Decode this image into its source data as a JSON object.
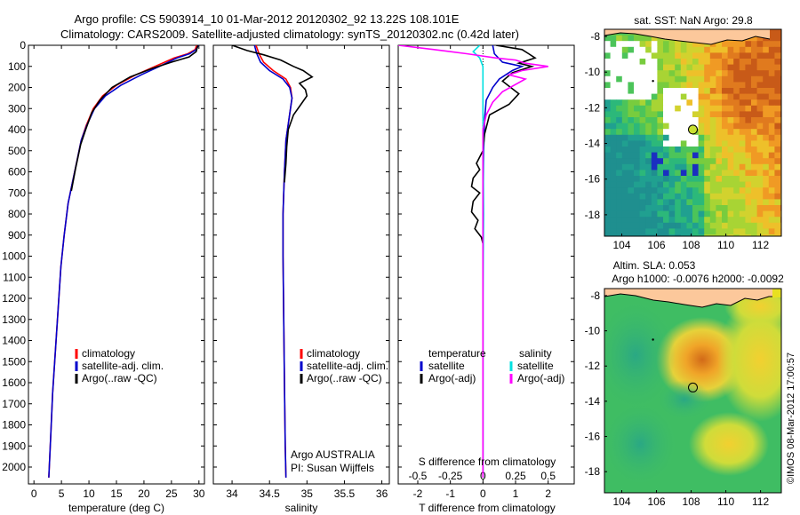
{
  "title": {
    "line1": "Argo profile: CS 5903914_10 01-Mar-2012 20120302_92 13.22S 108.101E",
    "line2": "Climatology: CARS2009. Satellite-adjusted climatology: synTS_20120302.nc (0.42d later)"
  },
  "map1_title": "sat. SST: NaN Argo: 29.8",
  "map2_title_line1": "Altim. SLA: 0.053",
  "map2_title_line2": "Argo h1000: -0.0076 h2000: -0.0092",
  "watermark": "©IMOS 08-Mar-2012 17:00:57",
  "colors": {
    "climatology": "#ff0000",
    "satellite": "#0000cc",
    "argo": "#000000",
    "sal_satellite": "#00e0e0",
    "sal_argo": "#ff00ff"
  },
  "chart_data": [
    {
      "type": "line",
      "name": "temperature-profile",
      "xlabel": "temperature (deg C)",
      "ylabel": "",
      "xlim": [
        -1,
        31
      ],
      "ylim": [
        2080,
        0
      ],
      "xticks": [
        "0",
        "5",
        "10",
        "15",
        "20",
        "25",
        "30"
      ],
      "yticks": [
        "0",
        "100",
        "200",
        "300",
        "400",
        "500",
        "600",
        "700",
        "800",
        "900",
        "1000",
        "1100",
        "1200",
        "1300",
        "1400",
        "1500",
        "1600",
        "1700",
        "1800",
        "1900",
        "2000"
      ],
      "legend": [
        "climatology",
        "satellite-adj. clim.",
        "Argo(..raw -QC)"
      ],
      "series": [
        {
          "name": "climatology",
          "color": "#ff0000",
          "points": [
            [
              29.6,
              0
            ],
            [
              29.3,
              20
            ],
            [
              28,
              40
            ],
            [
              25.5,
              60
            ],
            [
              22,
              100
            ],
            [
              18.5,
              140
            ],
            [
              15,
              190
            ],
            [
              12.5,
              240
            ],
            [
              10.8,
              300
            ],
            [
              9.5,
              380
            ],
            [
              8.6,
              450
            ],
            [
              7.8,
              550
            ],
            [
              7,
              650
            ],
            [
              6.2,
              750
            ],
            [
              5.5,
              900
            ],
            [
              4.9,
              1050
            ],
            [
              4.4,
              1250
            ],
            [
              3.9,
              1450
            ],
            [
              3.4,
              1650
            ],
            [
              3.05,
              1850
            ],
            [
              2.7,
              2050
            ]
          ]
        },
        {
          "name": "satellite-adj. clim.",
          "color": "#0000cc",
          "points": [
            [
              29.9,
              0
            ],
            [
              29.5,
              20
            ],
            [
              28.3,
              40
            ],
            [
              26,
              60
            ],
            [
              22.8,
              100
            ],
            [
              19.5,
              140
            ],
            [
              15.8,
              190
            ],
            [
              13,
              240
            ],
            [
              11,
              300
            ],
            [
              9.6,
              380
            ],
            [
              8.6,
              450
            ],
            [
              7.8,
              550
            ],
            [
              7,
              650
            ],
            [
              6.2,
              750
            ],
            [
              5.5,
              900
            ],
            [
              4.9,
              1050
            ],
            [
              4.4,
              1250
            ],
            [
              3.9,
              1450
            ],
            [
              3.4,
              1650
            ],
            [
              3.05,
              1850
            ],
            [
              2.7,
              2050
            ]
          ]
        },
        {
          "name": "Argo(..raw -QC)",
          "color": "#000000",
          "points": [
            [
              29.8,
              0
            ],
            [
              29.5,
              30
            ],
            [
              28.2,
              55
            ],
            [
              25,
              80
            ],
            [
              21.5,
              110
            ],
            [
              17.5,
              150
            ],
            [
              14.2,
              200
            ],
            [
              12,
              260
            ],
            [
              10.5,
              320
            ],
            [
              9.4,
              400
            ],
            [
              8.5,
              470
            ],
            [
              7.6,
              580
            ],
            [
              6.8,
              690
            ]
          ]
        }
      ]
    },
    {
      "type": "line",
      "name": "salinity-profile",
      "xlabel": "salinity",
      "xlim": [
        33.75,
        36.1
      ],
      "ylim": [
        2080,
        0
      ],
      "xticks": [
        "34",
        "34.5",
        "35",
        "35.5",
        "36"
      ],
      "legend": [
        "climatology",
        "satellite-adj. clim.",
        "Argo(..raw -QC)"
      ],
      "annotation_line1": "Argo AUSTRALIA",
      "annotation_line2": "PI: Susan Wijffels",
      "series": [
        {
          "name": "climatology",
          "color": "#ff0000",
          "points": [
            [
              34.32,
              0
            ],
            [
              34.36,
              40
            ],
            [
              34.42,
              80
            ],
            [
              34.55,
              120
            ],
            [
              34.72,
              160
            ],
            [
              34.78,
              200
            ],
            [
              34.8,
              250
            ],
            [
              34.76,
              350
            ],
            [
              34.72,
              450
            ],
            [
              34.7,
              600
            ],
            [
              34.68,
              800
            ],
            [
              34.68,
              1000
            ],
            [
              34.69,
              1300
            ],
            [
              34.7,
              1600
            ],
            [
              34.71,
              1900
            ],
            [
              34.72,
              2050
            ]
          ]
        },
        {
          "name": "satellite-adj. clim.",
          "color": "#0000cc",
          "points": [
            [
              34.3,
              0
            ],
            [
              34.33,
              40
            ],
            [
              34.38,
              80
            ],
            [
              34.5,
              120
            ],
            [
              34.68,
              160
            ],
            [
              34.77,
              200
            ],
            [
              34.8,
              250
            ],
            [
              34.76,
              350
            ],
            [
              34.72,
              450
            ],
            [
              34.7,
              600
            ],
            [
              34.68,
              800
            ],
            [
              34.68,
              1000
            ],
            [
              34.69,
              1300
            ],
            [
              34.7,
              1600
            ],
            [
              34.71,
              1900
            ],
            [
              34.72,
              2050
            ]
          ]
        },
        {
          "name": "Argo(..raw -QC)",
          "color": "#000000",
          "points": [
            [
              34.0,
              0
            ],
            [
              34.2,
              25
            ],
            [
              34.42,
              45
            ],
            [
              34.65,
              70
            ],
            [
              34.82,
              100
            ],
            [
              34.95,
              120
            ],
            [
              35.07,
              150
            ],
            [
              34.9,
              180
            ],
            [
              34.98,
              210
            ],
            [
              35.0,
              240
            ],
            [
              34.92,
              280
            ],
            [
              34.82,
              330
            ],
            [
              34.75,
              400
            ],
            [
              34.73,
              480
            ],
            [
              34.72,
              560
            ],
            [
              34.7,
              650
            ]
          ]
        }
      ]
    },
    {
      "type": "line",
      "name": "difference-profile",
      "xlabel": "T difference from climatology",
      "xlabel_top": "S difference from climatology",
      "xlim": [
        -2.6,
        2.8
      ],
      "ylim": [
        2080,
        0
      ],
      "xticks": [
        "-2",
        "-1",
        "0",
        "1",
        "2"
      ],
      "xticks_s": [
        "-0.5",
        "-0.25",
        "0",
        "0.25",
        "0.5"
      ],
      "legend_temperature_title": "temperature",
      "legend_salinity_title": "salinity",
      "legend": [
        "satellite",
        "Argo(-adj)",
        "satellite",
        "Argo(-adj)"
      ],
      "series": [
        {
          "name": "T satellite",
          "color": "#0000cc",
          "points": [
            [
              0.3,
              0
            ],
            [
              0.35,
              40
            ],
            [
              0.6,
              80
            ],
            [
              1.2,
              100
            ],
            [
              0.9,
              120
            ],
            [
              0.5,
              160
            ],
            [
              0.3,
              200
            ],
            [
              0.1,
              260
            ],
            [
              0.05,
              350
            ],
            [
              0.02,
              500
            ],
            [
              0,
              800
            ],
            [
              0,
              2050
            ]
          ]
        },
        {
          "name": "T Argo(-adj)",
          "color": "#000000",
          "points": [
            [
              0.4,
              0
            ],
            [
              1.2,
              20
            ],
            [
              1.4,
              40
            ],
            [
              1.6,
              60
            ],
            [
              1.1,
              85
            ],
            [
              1.5,
              100
            ],
            [
              0.9,
              130
            ],
            [
              0.6,
              170
            ],
            [
              1.1,
              230
            ],
            [
              0.8,
              280
            ],
            [
              0.2,
              330
            ],
            [
              0.05,
              420
            ],
            [
              0,
              500
            ],
            [
              -0.2,
              560
            ],
            [
              -0.1,
              590
            ],
            [
              -0.3,
              630
            ],
            [
              -0.35,
              670
            ],
            [
              -0.1,
              700
            ],
            [
              -0.3,
              740
            ],
            [
              -0.35,
              790
            ],
            [
              -0.15,
              830
            ],
            [
              -0.25,
              870
            ],
            [
              -0.05,
              910
            ],
            [
              0,
              940
            ]
          ]
        },
        {
          "name": "S satellite",
          "color": "#00e0e0",
          "points": [
            [
              -0.1,
              0
            ],
            [
              -0.3,
              30
            ],
            [
              -0.1,
              60
            ],
            [
              0,
              100
            ],
            [
              0,
              300
            ],
            [
              0.02,
              800
            ],
            [
              0,
              1200
            ],
            [
              0,
              2050
            ]
          ]
        },
        {
          "name": "S Argo(-adj)",
          "color": "#ff00ff",
          "points": [
            [
              -2.6,
              0
            ],
            [
              -1.5,
              20
            ],
            [
              -0.5,
              40
            ],
            [
              0.4,
              60
            ],
            [
              1.0,
              70
            ],
            [
              1.3,
              85
            ],
            [
              2.0,
              100
            ],
            [
              1.2,
              120
            ],
            [
              0.8,
              140
            ],
            [
              1.3,
              160
            ],
            [
              0.6,
              220
            ],
            [
              0.3,
              270
            ],
            [
              0.1,
              330
            ],
            [
              0,
              400
            ],
            [
              0,
              800
            ],
            [
              0,
              1200
            ],
            [
              0,
              2050
            ]
          ]
        }
      ]
    },
    {
      "type": "heatmap",
      "name": "sst-map",
      "title": "sat. SST: NaN Argo: 29.8",
      "xlim": [
        103,
        113.2
      ],
      "ylim": [
        -19.2,
        -7.6
      ],
      "xticks": [
        "104",
        "106",
        "108",
        "110",
        "112"
      ],
      "yticks": [
        "-8",
        "-10",
        "-12",
        "-14",
        "-16",
        "-18"
      ],
      "marker": {
        "lon": 108.1,
        "lat": -13.22
      }
    },
    {
      "type": "heatmap",
      "name": "sla-map",
      "title": "Altim. SLA: 0.053",
      "xlim": [
        103,
        113.2
      ],
      "ylim": [
        -19.2,
        -7.6
      ],
      "xticks": [
        "104",
        "106",
        "108",
        "110",
        "112"
      ],
      "yticks": [
        "-8",
        "-10",
        "-12",
        "-14",
        "-16",
        "-18"
      ],
      "marker": {
        "lon": 108.1,
        "lat": -13.22
      }
    }
  ]
}
